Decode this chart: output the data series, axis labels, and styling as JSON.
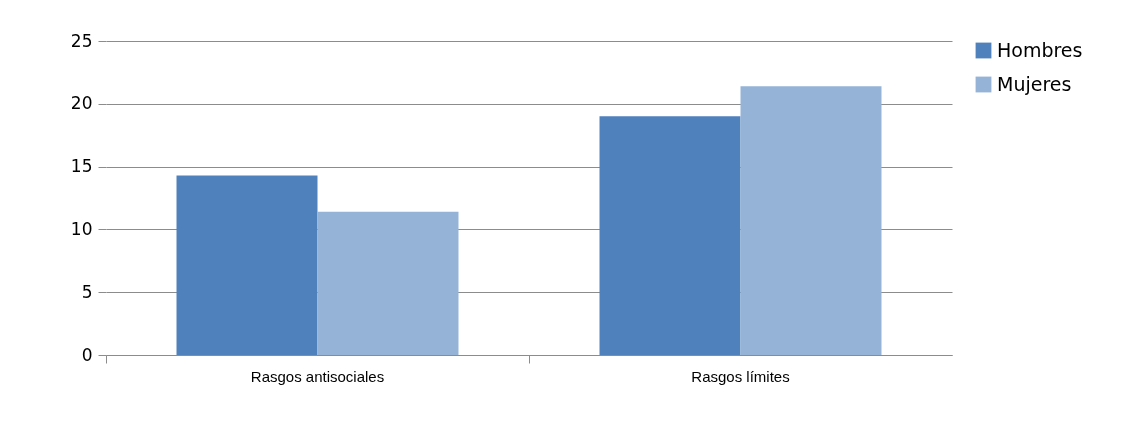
{
  "chart_data": {
    "type": "bar",
    "categories": [
      "Rasgos antisociales",
      "Rasgos límites"
    ],
    "series": [
      {
        "name": "Hombres",
        "color": "#4f81bd",
        "values": [
          14.3,
          19
        ]
      },
      {
        "name": "Mujeres",
        "color": "#95b3d7",
        "values": [
          11.4,
          21.4
        ]
      }
    ],
    "ylim": [
      0,
      25
    ],
    "yticks": [
      0,
      5,
      10,
      15,
      20,
      25
    ],
    "grid": "y",
    "legend": "right"
  }
}
